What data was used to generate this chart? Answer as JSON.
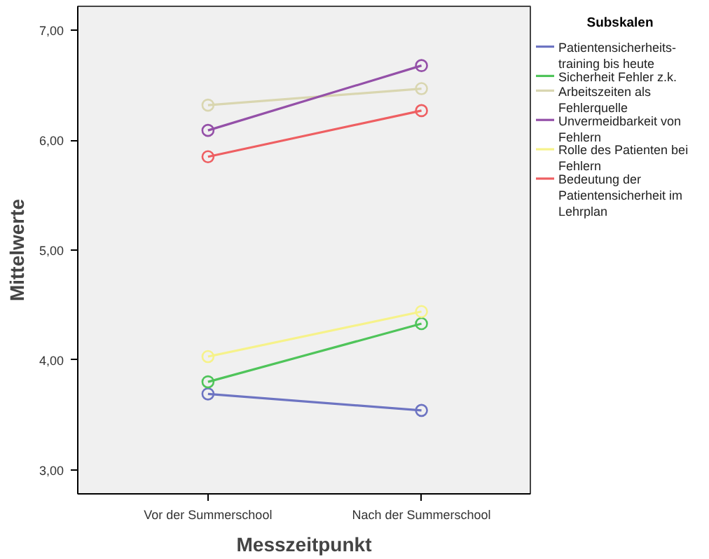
{
  "chart_data": {
    "type": "line",
    "xlabel": "Messzeitpunkt",
    "ylabel": "Mittelwerte",
    "legend_title": "Subskalen",
    "categories": [
      "Vor der Summerschool",
      "Nach der Summerschool"
    ],
    "ylim": [
      2.78,
      7.22
    ],
    "yticks": [
      {
        "value": 3,
        "label": "3,00"
      },
      {
        "value": 4,
        "label": "4,00"
      },
      {
        "value": 5,
        "label": "5,00"
      },
      {
        "value": 6,
        "label": "6,00"
      },
      {
        "value": 7,
        "label": "7,00"
      }
    ],
    "grid": false,
    "legend": "right",
    "marker": "circle",
    "line_style": "solid",
    "series": [
      {
        "name": "Patientensicherheits-training bis heute",
        "color": "#6d74c2",
        "values": [
          3.69,
          3.54
        ]
      },
      {
        "name": "Sicherheit Fehler z.k.",
        "color": "#4fc45a",
        "values": [
          3.8,
          4.33
        ]
      },
      {
        "name": "Arbeitszeiten als Fehlerquelle",
        "color": "#d9d6b0",
        "values": [
          6.32,
          6.47
        ]
      },
      {
        "name": "Unvermeidbarkeit von Fehlern",
        "color": "#9450a8",
        "values": [
          6.09,
          6.68
        ]
      },
      {
        "name": "Rolle des Patienten bei Fehlern",
        "color": "#f6f28a",
        "values": [
          4.03,
          4.44
        ]
      },
      {
        "name": "Bedeutung der Patientensicherheit im Lehrplan",
        "color": "#ee5f62",
        "values": [
          5.85,
          6.27
        ]
      }
    ]
  }
}
